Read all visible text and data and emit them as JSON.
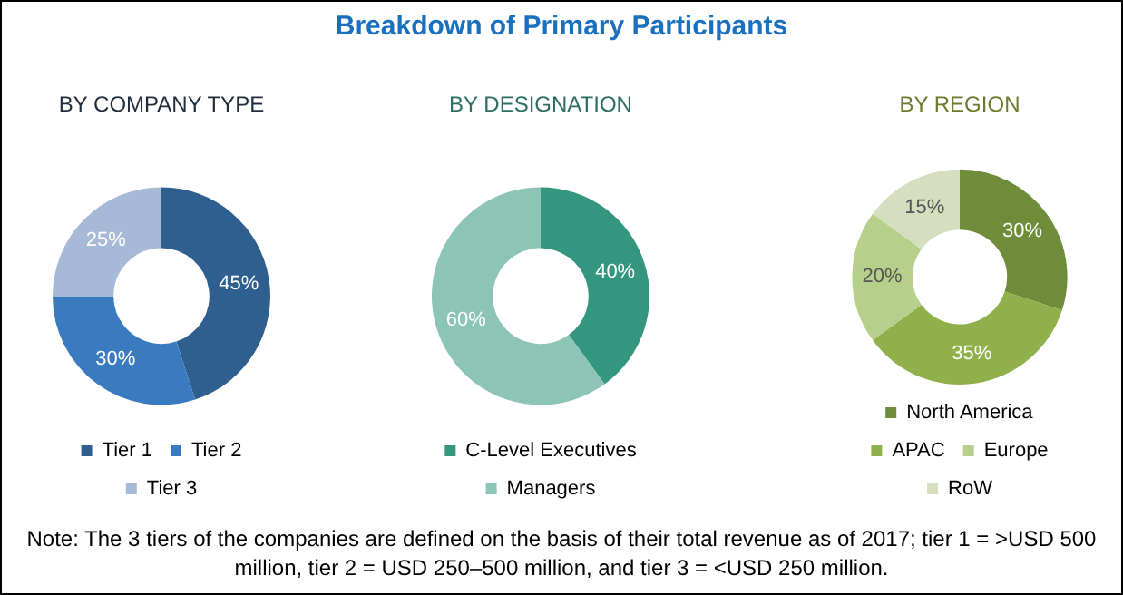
{
  "chart_data": [
    {
      "type": "other",
      "title": "Breakdown of Primary Participants",
      "annotations": [
        "Note: The 3 tiers of the companies are defined on the basis of their total revenue as of 2017; tier 1 = >USD 500 million, tier 2 = USD 250–500 million, and tier 3 = <USD 250 million."
      ]
    },
    {
      "type": "donut",
      "title": "BY COMPANY TYPE",
      "categories": [
        "Tier 1",
        "Tier 2",
        "Tier 3"
      ],
      "values": [
        45,
        30,
        25
      ],
      "colors": [
        "#2e5f8f",
        "#3a7abf",
        "#a6b9d6"
      ],
      "value_labels": [
        "45%",
        "30%",
        "25%"
      ],
      "legend": "bottom"
    },
    {
      "type": "donut",
      "title": "BY DESIGNATION",
      "categories": [
        "C-Level Executives",
        "Managers"
      ],
      "values": [
        40,
        60
      ],
      "colors": [
        "#35967f",
        "#8cc4b5"
      ],
      "value_labels": [
        "40%",
        "60%"
      ],
      "legend": "bottom"
    },
    {
      "type": "donut",
      "title": "BY REGION",
      "categories": [
        "North America",
        "APAC",
        "Europe",
        "RoW"
      ],
      "values": [
        30,
        35,
        20,
        15
      ],
      "colors": [
        "#6e8c3a",
        "#8fb04a",
        "#b6cf8a",
        "#d5dfc0"
      ],
      "value_labels": [
        "30%",
        "35%",
        "20%",
        "15%"
      ],
      "legend": "bottom"
    }
  ]
}
